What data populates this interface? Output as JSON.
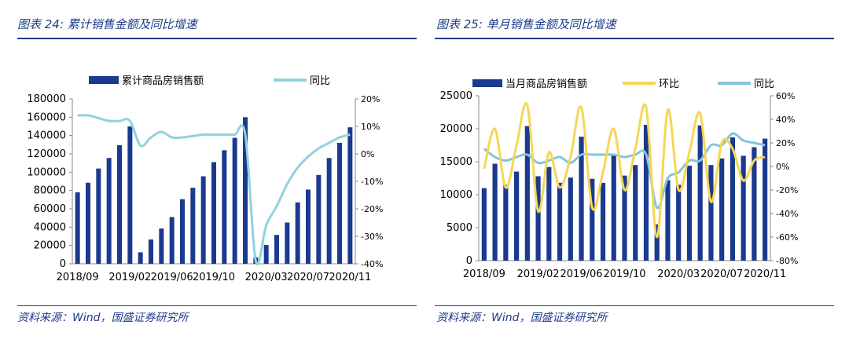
{
  "panels": [
    {
      "title": "图表 24:  累计销售金额及同比增速",
      "source": "资料来源：Wind，国盛证券研究所"
    },
    {
      "title": "图表 25:  单月销售金额及同比增速",
      "source": "资料来源：Wind，国盛证券研究所"
    }
  ],
  "colors": {
    "bar": "#1a3a8f",
    "yoy_left": "#8fd3dc",
    "mom": "#f5d657",
    "yoy_right": "#86c4de",
    "title": "#1f3b8a"
  },
  "chart_data": [
    {
      "type": "bar+line",
      "legend": [
        "累计商品房销售额",
        "同比"
      ],
      "x_tick_labels": [
        "2018/09",
        "2019/02",
        "2019/06",
        "2019/10",
        "2020/03",
        "2020/07",
        "2020/11"
      ],
      "x_tick_index": [
        0,
        5,
        9,
        13,
        18,
        22,
        26
      ],
      "y_left": {
        "ticks": [
          "0",
          "20000",
          "40000",
          "60000",
          "80000",
          "100000",
          "120000",
          "140000",
          "160000",
          "180000"
        ],
        "min": 0,
        "max": 180000
      },
      "y_right": {
        "ticks": [
          "-40%",
          "-30%",
          "-20%",
          "-10%",
          "0%",
          "10%",
          "20%"
        ],
        "min": -40,
        "max": 20
      },
      "bars": [
        78000,
        88500,
        104000,
        115500,
        129500,
        150000,
        12500,
        26500,
        38500,
        51000,
        70500,
        83000,
        95500,
        111000,
        124000,
        137500,
        160000,
        7000,
        20500,
        31500,
        45000,
        67000,
        81000,
        97000,
        115500,
        132000,
        149000
      ],
      "yoy": [
        14,
        14,
        13,
        12,
        12,
        12,
        3,
        6,
        8,
        6,
        6,
        6.5,
        7,
        7,
        7,
        7,
        7,
        -39,
        -26,
        -19,
        -11,
        -5,
        -1,
        2,
        4,
        6,
        7
      ]
    },
    {
      "type": "bar+line",
      "legend": [
        "当月商品房销售额",
        "环比",
        "同比"
      ],
      "x_tick_labels": [
        "2018/09",
        "2019/02",
        "2019/06",
        "2019/10",
        "2020/03",
        "2020/07",
        "2020/11"
      ],
      "x_tick_index": [
        0,
        5,
        9,
        13,
        18,
        22,
        26
      ],
      "y_left": {
        "ticks": [
          "0",
          "5000",
          "10000",
          "15000",
          "20000",
          "25000"
        ],
        "min": 0,
        "max": 25000
      },
      "y_right": {
        "ticks": [
          "-80%",
          "-60%",
          "-40%",
          "-20%",
          "0%",
          "20%",
          "40%",
          "60%"
        ],
        "min": -80,
        "max": 60
      },
      "bars": [
        11000,
        14700,
        11500,
        13500,
        20400,
        12800,
        14200,
        11800,
        12600,
        18800,
        12400,
        11800,
        16000,
        12900,
        14500,
        20600,
        5500,
        12200,
        11500,
        14400,
        20500,
        14500,
        15500,
        18700,
        15900,
        17200,
        18500
      ],
      "mom": [
        -2,
        32,
        -18,
        18,
        52,
        -38,
        12,
        -18,
        8,
        50,
        -35,
        -5,
        32,
        -20,
        15,
        50,
        -60,
        48,
        -20,
        12,
        45,
        -30,
        20,
        15,
        -12,
        5,
        8
      ],
      "yoy_right": [
        15,
        8,
        5,
        8,
        10,
        3,
        5,
        8,
        3,
        10,
        10,
        10,
        10,
        8,
        10,
        10,
        -35,
        -10,
        -5,
        5,
        5,
        18,
        18,
        28,
        22,
        20,
        18
      ]
    }
  ]
}
